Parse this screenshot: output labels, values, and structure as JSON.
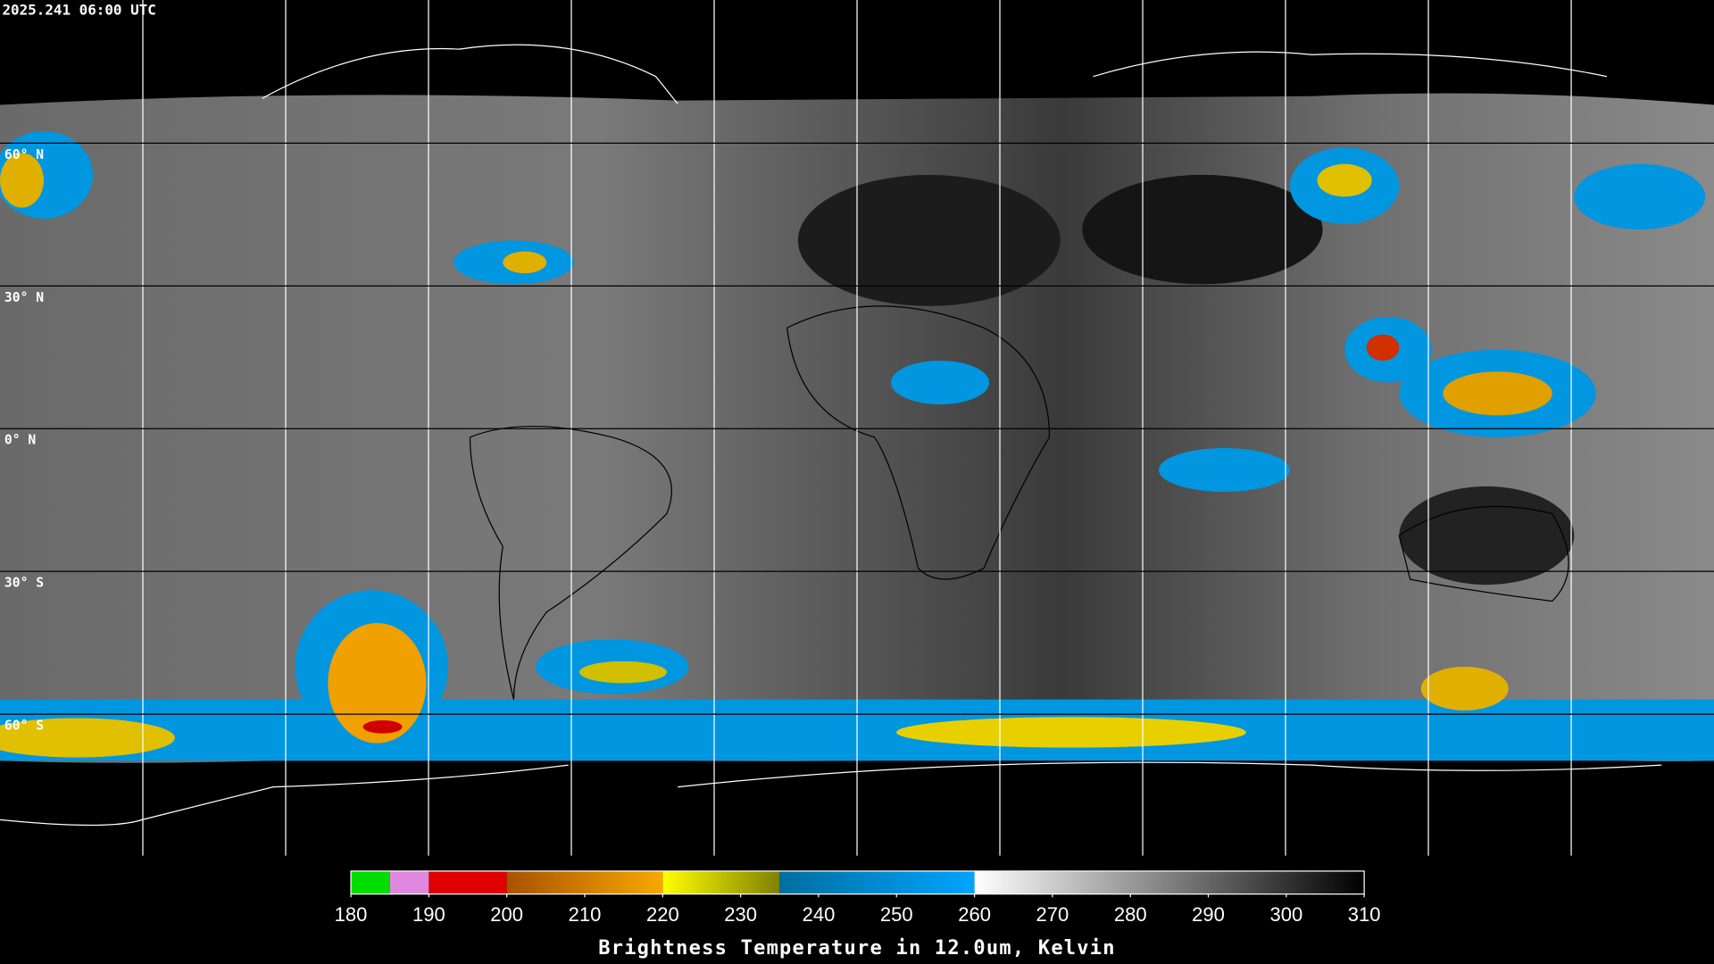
{
  "map": {
    "title": "2025.241 06:00 UTC",
    "lat_labels": [
      "60° N",
      "30° N",
      "0° N",
      "30° S",
      "60° S"
    ]
  },
  "colorbar": {
    "label": "Brightness Temperature in 12.0um, Kelvin",
    "lim": [
      180,
      310
    ],
    "ticks": [
      180,
      190,
      200,
      210,
      220,
      230,
      240,
      250,
      260,
      270,
      280,
      290,
      300,
      310
    ],
    "segments": [
      {
        "from": 180,
        "to": 185,
        "colors": [
          "#00dd00",
          "#00dd00"
        ]
      },
      {
        "from": 185,
        "to": 190,
        "colors": [
          "#e088e0",
          "#e088e0"
        ]
      },
      {
        "from": 190,
        "to": 200,
        "colors": [
          "#e00000",
          "#e00000"
        ]
      },
      {
        "from": 200,
        "to": 220,
        "colors": [
          "#a85200",
          "#f8a800"
        ]
      },
      {
        "from": 220,
        "to": 235,
        "colors": [
          "#ffff00",
          "#808000"
        ]
      },
      {
        "from": 235,
        "to": 260,
        "colors": [
          "#006ea0",
          "#00a4ff"
        ]
      },
      {
        "from": 260,
        "to": 310,
        "colors": [
          "#ffffff",
          "#000000"
        ]
      }
    ]
  }
}
